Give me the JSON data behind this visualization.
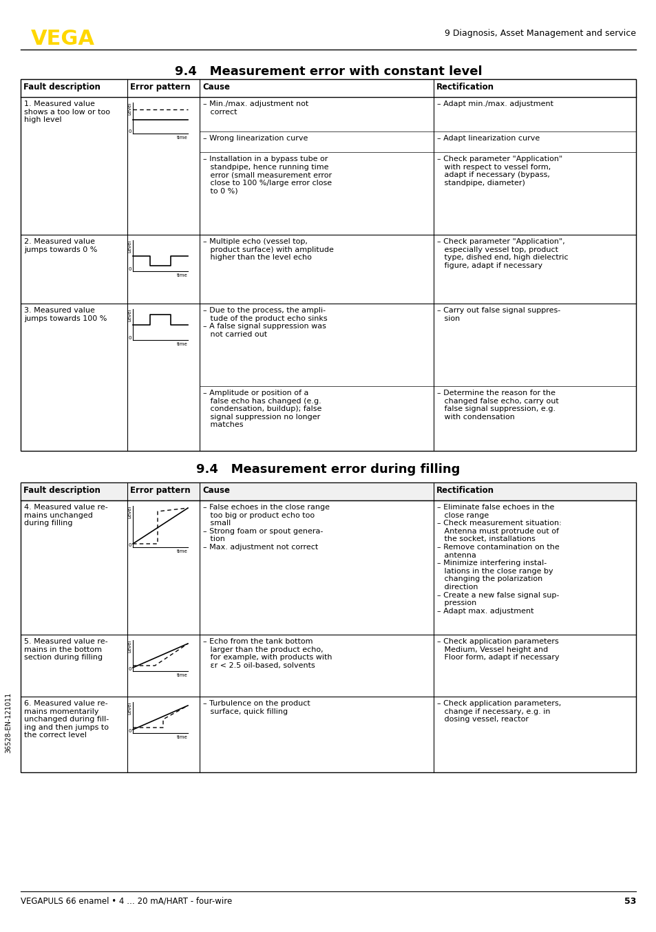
{
  "page_title": "9 Diagnosis, Asset Management and service",
  "section1_title": "9.4   Measurement error with constant level",
  "section2_title": "9.4   Measurement error during filling",
  "footer_text": "VEGAPULS 66 enamel • 4 … 20 mA/HART - four-wire",
  "footer_page": "53",
  "col_headers": [
    "Fault description",
    "Error pattern",
    "Cause",
    "Rectification"
  ],
  "table1_rows": [
    {
      "fault": "1. Measured value\nshows a too low or too\nhigh level",
      "has_diagram": true,
      "diagram_type": "flat_offset",
      "causes": [
        "– Min./max. adjustment not\n   correct",
        "– Wrong linearization curve",
        "– Installation in a bypass tube or\n   standpipe, hence running time\n   error (small measurement error\n   close to 100 %/large error close\n   to 0 %)"
      ],
      "rectifications": [
        "– Adapt min./max. adjustment",
        "– Adapt linearization curve",
        "– Check parameter \"Application\"\n   with respect to vessel form,\n   adapt if necessary (bypass,\n   standpipe, diameter)"
      ]
    },
    {
      "fault": "2. Measured value\njumps towards 0 %",
      "has_diagram": true,
      "diagram_type": "jump_down",
      "causes": [
        "– Multiple echo (vessel top,\n   product surface) with amplitude\n   higher than the level echo"
      ],
      "rectifications": [
        "– Check parameter \"Application\",\n   especially vessel top, product\n   type, dished end, high dielectric\n   figure, adapt if necessary"
      ]
    },
    {
      "fault": "3. Measured value\njumps towards 100 %",
      "has_diagram": true,
      "diagram_type": "jump_up",
      "causes": [
        "– Due to the process, the ampli-\n   tude of the product echo sinks\n– A false signal suppression was\n   not carried out",
        "– Amplitude or position of a\n   false echo has changed (e.g.\n   condensation, buildup); false\n   signal suppression no longer\n   matches"
      ],
      "rectifications": [
        "– Carry out false signal suppres-\n   sion",
        "– Determine the reason for the\n   changed false echo, carry out\n   false signal suppression, e.g.\n   with condensation"
      ]
    }
  ],
  "table2_rows": [
    {
      "fault": "4. Measured value re-\nmains unchanged\nduring filling",
      "has_diagram": true,
      "diagram_type": "filling_flat",
      "causes": [
        "– False echoes in the close range\n   too big or product echo too\n   small\n– Strong foam or spout genera-\n   tion\n– Max. adjustment not correct"
      ],
      "rectifications": [
        "– Eliminate false echoes in the\n   close range\n– Check measurement situation:\n   Antenna must protrude out of\n   the socket, installations\n– Remove contamination on the\n   antenna\n– Minimize interfering instal-\n   lations in the close range by\n   changing the polarization\n   direction\n– Create a new false signal sup-\n   pression\n– Adapt max. adjustment"
      ]
    },
    {
      "fault": "5. Measured value re-\nmains in the bottom\nsection during filling",
      "has_diagram": true,
      "diagram_type": "filling_bottom",
      "causes": [
        "– Echo from the tank bottom\n   larger than the product echo,\n   for example, with products with\n   εr < 2.5 oil-based, solvents"
      ],
      "rectifications": [
        "– Check application parameters\n   Medium, Vessel height and\n   Floor form, adapt if necessary"
      ]
    },
    {
      "fault": "6. Measured value re-\nmains momentarily\nunchanged during fill-\ning and then jumps to\nthe correct level",
      "has_diagram": true,
      "diagram_type": "filling_jump",
      "causes": [
        "– Turbulence on the product\n   surface, quick filling"
      ],
      "rectifications": [
        "– Check application parameters,\n   change if necessary, e.g. in\n   dosing vessel, reactor"
      ]
    }
  ],
  "vega_color": "#FFD700",
  "border_color": "#000000",
  "bg_color": "#ffffff",
  "text_color": "#000000",
  "header_bg": "#e0e0e0"
}
